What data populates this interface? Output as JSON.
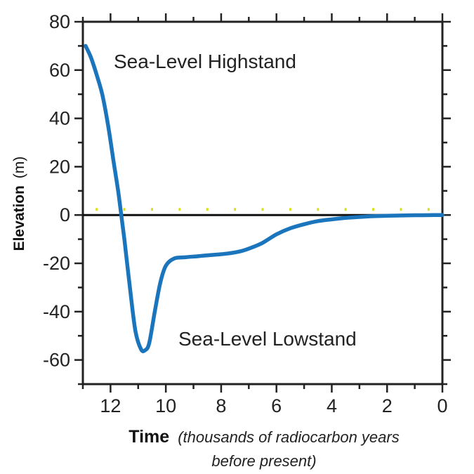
{
  "chart_data": {
    "type": "line",
    "title": "",
    "ylabel_main": "Elevation",
    "ylabel_unit": "(m)",
    "xlabel_main": "Time",
    "xlabel_note_line1": "(thousands of radiocarbon years",
    "xlabel_note_line2": "before present)",
    "xlim": [
      13,
      0
    ],
    "ylim": [
      -70,
      80
    ],
    "x_ticks": [
      12,
      10,
      8,
      6,
      4,
      2,
      0
    ],
    "x_tick_labels": [
      "12",
      "10",
      "8",
      "6",
      "4",
      "2",
      "0"
    ],
    "y_ticks": [
      80,
      60,
      40,
      20,
      0,
      -20,
      -40,
      -60
    ],
    "y_tick_labels": [
      "80",
      "60",
      "40",
      "20",
      "0",
      "-20",
      "-40",
      "-60"
    ],
    "annotations": {
      "highstand": "Sea-Level Highstand",
      "lowstand": "Sea-Level Lowstand"
    },
    "zero_line": true,
    "grid": false,
    "colors": {
      "line": "#1b75bc",
      "zero_line": "#111111",
      "zero_dots": "#d9e021",
      "frame": "#222222"
    },
    "series": [
      {
        "x": [
          12.9,
          12.7,
          12.5,
          12.3,
          12.1,
          11.9,
          11.7,
          11.5,
          11.3,
          11.1,
          10.9,
          10.75,
          10.6,
          10.4,
          10.2,
          10.0,
          9.7,
          9.3,
          8.8,
          8.3,
          7.8,
          7.3,
          6.9,
          6.5,
          6.0,
          5.5,
          5.0,
          4.5,
          4.0,
          3.5,
          3.0,
          2.5,
          2.0,
          1.5,
          1.0,
          0.5,
          0.0
        ],
        "y": [
          70,
          65,
          58,
          50,
          38,
          23,
          8,
          -10,
          -30,
          -48,
          -55.5,
          -56,
          -53,
          -40,
          -28,
          -21,
          -18,
          -17.5,
          -17,
          -16.5,
          -16,
          -15,
          -13.5,
          -11.5,
          -8,
          -5.5,
          -3.8,
          -2.5,
          -1.8,
          -1.2,
          -0.8,
          -0.5,
          -0.3,
          -0.2,
          -0.1,
          -0.05,
          0
        ]
      }
    ]
  }
}
